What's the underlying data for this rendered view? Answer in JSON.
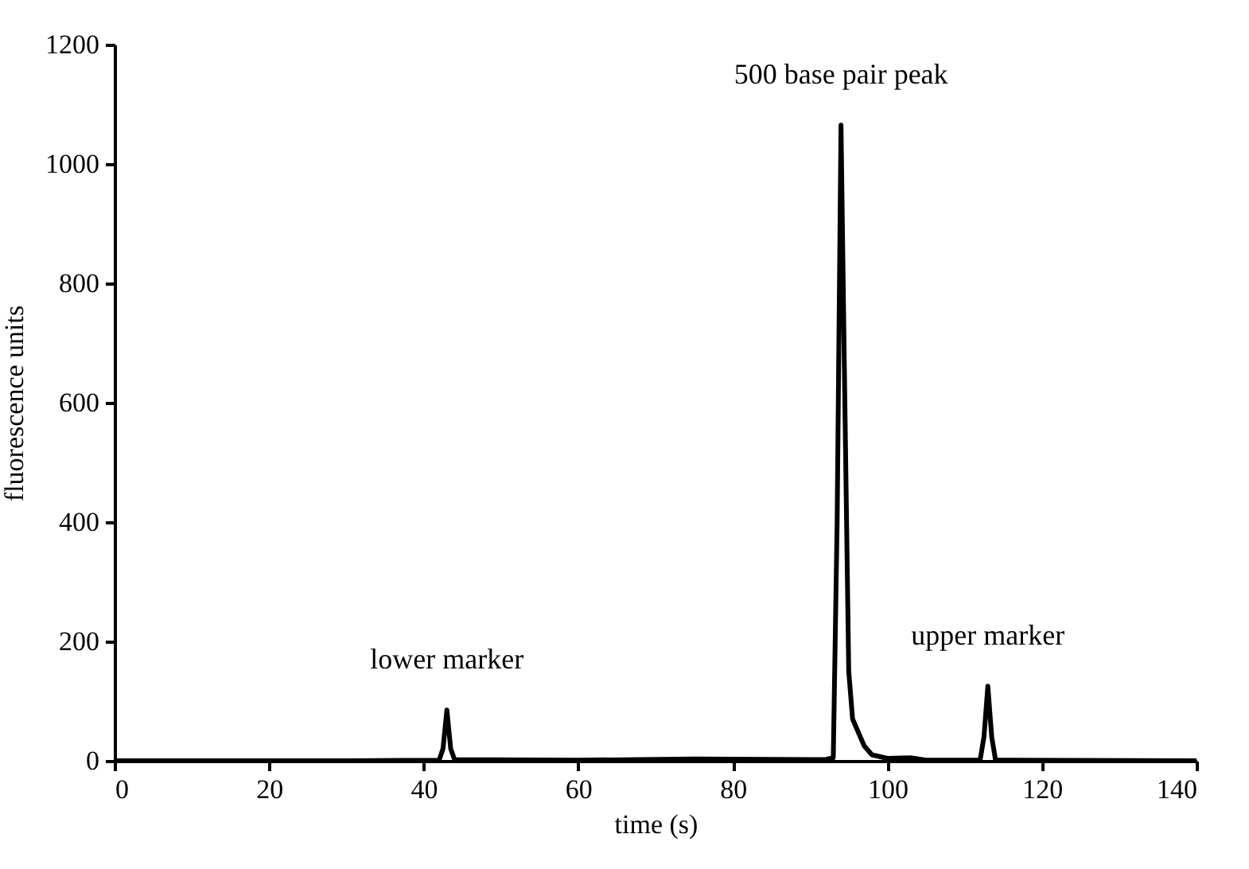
{
  "chart_data": {
    "type": "line",
    "xlabel": "time (s)",
    "ylabel": "fluorescence units",
    "xlim": [
      0,
      140
    ],
    "xticks": [
      0,
      20,
      40,
      60,
      80,
      100,
      120,
      140
    ],
    "ylim": [
      0,
      1200
    ],
    "yticks": [
      0,
      200,
      400,
      600,
      800,
      1000,
      1200
    ],
    "grid": false,
    "marker": "none",
    "line_style": "solid",
    "series": [
      {
        "color": "#000000",
        "x": [
          0,
          30,
          42,
          42.5,
          43,
          43.5,
          44,
          60,
          75,
          92,
          93,
          93.5,
          94,
          94.5,
          95,
          95.5,
          96,
          97,
          98,
          100,
          103,
          105,
          112,
          112.5,
          113,
          113.5,
          114,
          140
        ],
        "values": [
          0,
          0,
          1,
          20,
          85,
          20,
          2,
          1,
          3,
          2,
          5,
          400,
          1065,
          600,
          150,
          70,
          55,
          25,
          10,
          4,
          5,
          1,
          1,
          40,
          125,
          40,
          1,
          0
        ]
      }
    ],
    "annotations": [
      {
        "text": "lower marker",
        "x": 43,
        "y": 85
      },
      {
        "text": "500 base pair peak",
        "x": 94,
        "y": 1065
      },
      {
        "text": "upper marker",
        "x": 113,
        "y": 125
      }
    ]
  }
}
